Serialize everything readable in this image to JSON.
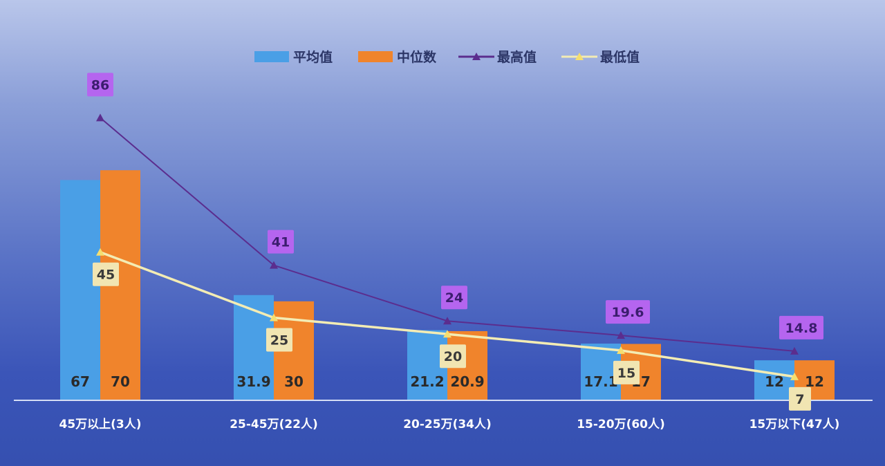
{
  "chart_data": {
    "type": "bar",
    "categories": [
      "45万以上(3人)",
      "25-45万(22人)",
      "20-25万(34人)",
      "15-20万(60人)",
      "15万以下(47人)"
    ],
    "series": [
      {
        "name": "平均值",
        "kind": "bar",
        "color": "#4a9fe6",
        "values": [
          67,
          31.9,
          21.2,
          17.1,
          12
        ],
        "labels": [
          "67",
          "31.9",
          "21.2",
          "17.1",
          "12"
        ]
      },
      {
        "name": "中位数",
        "kind": "bar",
        "color": "#f0842c",
        "values": [
          70,
          30,
          20.9,
          17,
          12
        ],
        "labels": [
          "70",
          "30",
          "20.9",
          "17",
          "12"
        ]
      },
      {
        "name": "最高值",
        "kind": "line",
        "color": "#5b2d8e",
        "label_bg": "#b565ef",
        "values": [
          86,
          41,
          24,
          19.6,
          14.8
        ],
        "labels": [
          "86",
          "41",
          "24",
          "19.6",
          "14.8"
        ]
      },
      {
        "name": "最低值",
        "kind": "line",
        "color": "#f3ecb4",
        "label_bg": "#f1e5b2",
        "values": [
          45,
          25,
          20,
          15,
          7
        ],
        "labels": [
          "45",
          "25",
          "20",
          "15",
          "7"
        ]
      }
    ],
    "ylim": [
      0,
      90
    ],
    "grid": false,
    "legend": "top-center"
  }
}
